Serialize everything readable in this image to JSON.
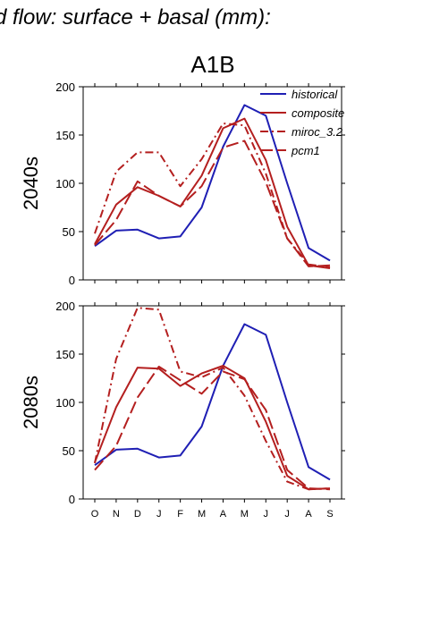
{
  "figure": {
    "title": "d flow: surface + basal (mm):",
    "panel_title": "A1B"
  },
  "colors": {
    "historical": "#1f1fb4",
    "scenario": "#b41f1f"
  },
  "chart_data": [
    {
      "type": "line",
      "row_label": "2040s",
      "categories": [
        "O",
        "N",
        "D",
        "J",
        "F",
        "M",
        "A",
        "M",
        "J",
        "J",
        "A",
        "S"
      ],
      "ylim": [
        0,
        200
      ],
      "yticks": [
        0,
        50,
        100,
        150,
        200
      ],
      "legend": {
        "placement": "top-right",
        "entries": [
          "historical",
          "composite",
          "miroc_3.2",
          "pcm1"
        ]
      },
      "series": [
        {
          "name": "historical",
          "style": "solid",
          "color": "#1f1fb4",
          "values": [
            35,
            51,
            52,
            43,
            45,
            75,
            138,
            181,
            170,
            100,
            33,
            20
          ]
        },
        {
          "name": "composite",
          "style": "solid",
          "color": "#b41f1f",
          "values": [
            37,
            78,
            96,
            87,
            76,
            108,
            157,
            167,
            124,
            55,
            15,
            12
          ]
        },
        {
          "name": "miroc_3.2",
          "style": "dashdot",
          "color": "#b41f1f",
          "values": [
            48,
            112,
            132,
            132,
            97,
            125,
            162,
            160,
            110,
            43,
            16,
            13
          ]
        },
        {
          "name": "pcm1",
          "style": "longdash",
          "color": "#b41f1f",
          "values": [
            36,
            62,
            102,
            87,
            76,
            97,
            137,
            144,
            101,
            43,
            14,
            15
          ]
        }
      ]
    },
    {
      "type": "line",
      "row_label": "2080s",
      "categories": [
        "O",
        "N",
        "D",
        "J",
        "F",
        "M",
        "A",
        "M",
        "J",
        "J",
        "A",
        "S"
      ],
      "ylim": [
        0,
        200
      ],
      "yticks": [
        0,
        50,
        100,
        150,
        200
      ],
      "series": [
        {
          "name": "historical",
          "style": "solid",
          "color": "#1f1fb4",
          "values": [
            35,
            51,
            52,
            43,
            45,
            75,
            138,
            181,
            170,
            100,
            33,
            20
          ]
        },
        {
          "name": "composite",
          "style": "solid",
          "color": "#b41f1f",
          "values": [
            38,
            95,
            136,
            135,
            117,
            130,
            138,
            125,
            80,
            24,
            10,
            11
          ]
        },
        {
          "name": "miroc_3.2",
          "style": "dashdot",
          "color": "#b41f1f",
          "values": [
            37,
            145,
            198,
            196,
            132,
            126,
            136,
            107,
            60,
            18,
            10,
            11
          ]
        },
        {
          "name": "pcm1",
          "style": "longdash",
          "color": "#b41f1f",
          "values": [
            30,
            55,
            105,
            137,
            123,
            109,
            132,
            124,
            92,
            30,
            11,
            10
          ]
        }
      ]
    }
  ]
}
